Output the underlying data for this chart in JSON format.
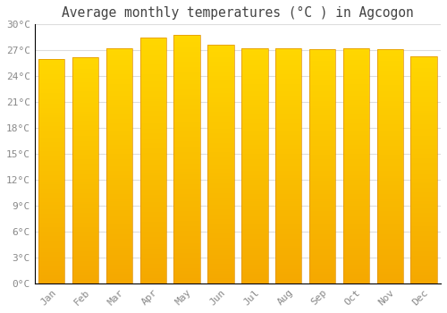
{
  "title": "Average monthly temperatures (°C ) in Agcogon",
  "months": [
    "Jan",
    "Feb",
    "Mar",
    "Apr",
    "May",
    "Jun",
    "Jul",
    "Aug",
    "Sep",
    "Oct",
    "Nov",
    "Dec"
  ],
  "values": [
    26.0,
    26.2,
    27.2,
    28.5,
    28.8,
    27.6,
    27.2,
    27.2,
    27.1,
    27.2,
    27.1,
    26.3
  ],
  "bar_color_top": "#FFD700",
  "bar_color_bottom": "#F5A800",
  "bar_edge_color": "#E09000",
  "background_color": "#FFFFFF",
  "plot_bg_color": "#FFFFFF",
  "grid_color": "#DDDDDD",
  "text_color": "#888888",
  "title_color": "#444444",
  "ylim": [
    0,
    30
  ],
  "ytick_step": 3,
  "title_fontsize": 10.5,
  "tick_fontsize": 8
}
